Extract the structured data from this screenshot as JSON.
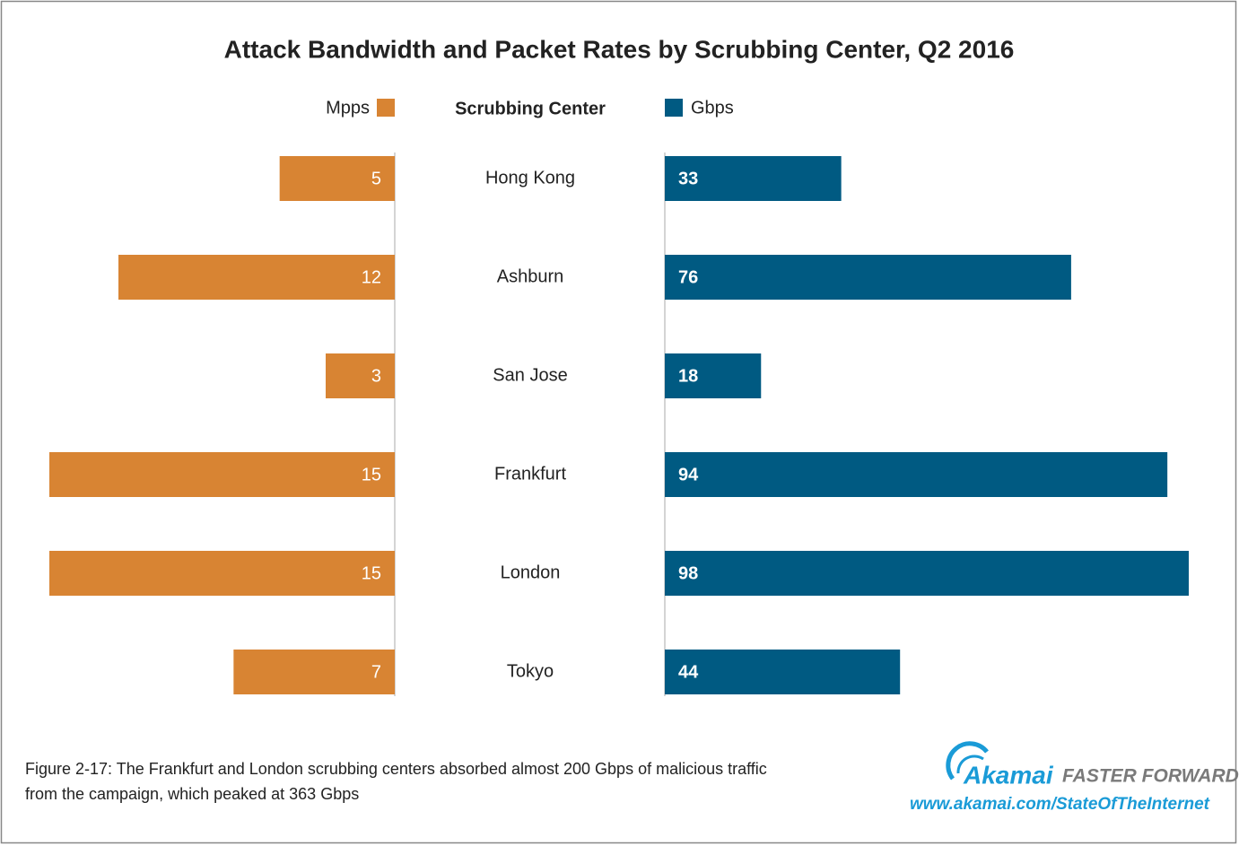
{
  "chart_data": {
    "type": "butterfly-bar",
    "title": "Attack Bandwidth and Packet Rates by Scrubbing Center, Q2 2016",
    "category_label": "Scrubbing Center",
    "categories": [
      "Hong Kong",
      "Ashburn",
      "San Jose",
      "Frankfurt",
      "London",
      "Tokyo"
    ],
    "series": [
      {
        "name": "Mpps",
        "color": "#d88433",
        "side": "left",
        "values": [
          5,
          12,
          3,
          15,
          15,
          7
        ]
      },
      {
        "name": "Gbps",
        "color": "#005a82",
        "side": "right",
        "values": [
          33,
          76,
          18,
          94,
          98,
          44
        ]
      }
    ],
    "caption": [
      "Figure 2-17: The Frankfurt and London scrubbing centers absorbed almost 200 Gbps of malicious traffic",
      "from the campaign, which peaked at 363 Gbps"
    ]
  },
  "brand": {
    "name": "Akamai",
    "tagline": "FASTER FORWARD",
    "url": "www.akamai.com/StateOfTheInternet"
  }
}
